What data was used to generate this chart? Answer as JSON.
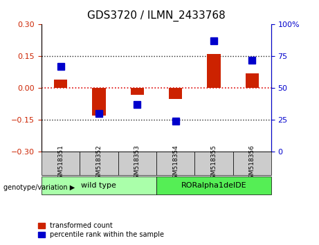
{
  "title": "GDS3720 / ILMN_2433768",
  "samples": [
    "GSM518351",
    "GSM518352",
    "GSM518353",
    "GSM518354",
    "GSM518355",
    "GSM518356"
  ],
  "red_values": [
    0.04,
    -0.13,
    -0.03,
    -0.05,
    0.16,
    0.07
  ],
  "blue_values": [
    67,
    30,
    37,
    24,
    87,
    72
  ],
  "ylim_left": [
    -0.3,
    0.3
  ],
  "ylim_right": [
    0,
    100
  ],
  "yticks_left": [
    -0.3,
    -0.15,
    0,
    0.15,
    0.3
  ],
  "yticks_right": [
    0,
    25,
    50,
    75,
    100
  ],
  "hlines": [
    0.15,
    0,
    -0.15
  ],
  "red_color": "#cc2200",
  "blue_color": "#0000cc",
  "hline_red_color": "#dd0000",
  "hline_dark_color": "#222222",
  "bar_width": 0.35,
  "blue_marker_size": 7,
  "groups": [
    {
      "label": "wild type",
      "indices": [
        0,
        1,
        2
      ],
      "color": "#aaffaa"
    },
    {
      "label": "RORalpha1delDE",
      "indices": [
        3,
        4,
        5
      ],
      "color": "#55ee55"
    }
  ],
  "group_row_label": "genotype/variation",
  "legend_red": "transformed count",
  "legend_blue": "percentile rank within the sample",
  "tick_fontsize": 8,
  "label_fontsize": 8,
  "title_fontsize": 11
}
